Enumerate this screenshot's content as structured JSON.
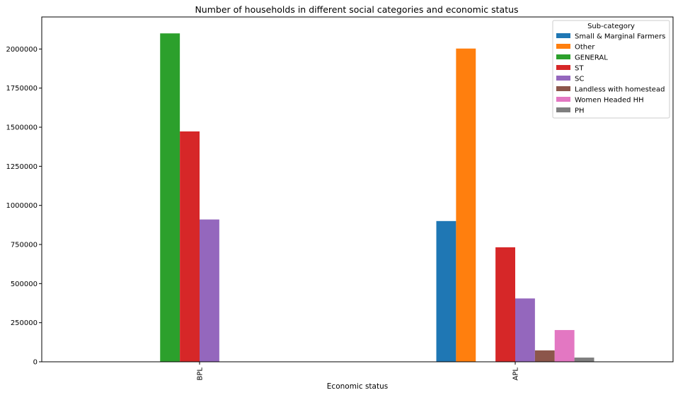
{
  "chart_data": {
    "type": "bar",
    "title": "Number of households in different social categories and economic status",
    "xlabel": "Economic status",
    "ylabel": "",
    "categories": [
      "BPL",
      "APL"
    ],
    "ylim": [
      0,
      2205000
    ],
    "yticks": [
      0,
      250000,
      500000,
      750000,
      1000000,
      1250000,
      1500000,
      1750000,
      2000000
    ],
    "grid": false,
    "legend": {
      "title": "Sub-category",
      "placement": "top-right"
    },
    "series": [
      {
        "name": "Small & Marginal Farmers",
        "color": "#1f77b4",
        "values": [
          0,
          900000
        ]
      },
      {
        "name": "Other",
        "color": "#ff7f0e",
        "values": [
          0,
          2003000
        ]
      },
      {
        "name": "GENERAL",
        "color": "#2ca02c",
        "values": [
          2100000,
          0
        ]
      },
      {
        "name": "ST",
        "color": "#d62728",
        "values": [
          1473000,
          732000
        ]
      },
      {
        "name": "SC",
        "color": "#9467bd",
        "values": [
          910000,
          405000
        ]
      },
      {
        "name": "Landless with homestead",
        "color": "#8c564b",
        "values": [
          0,
          73000
        ]
      },
      {
        "name": "Women Headed HH",
        "color": "#e377c2",
        "values": [
          0,
          203000
        ]
      },
      {
        "name": "PH",
        "color": "#7f7f7f",
        "values": [
          0,
          27000
        ]
      }
    ]
  }
}
